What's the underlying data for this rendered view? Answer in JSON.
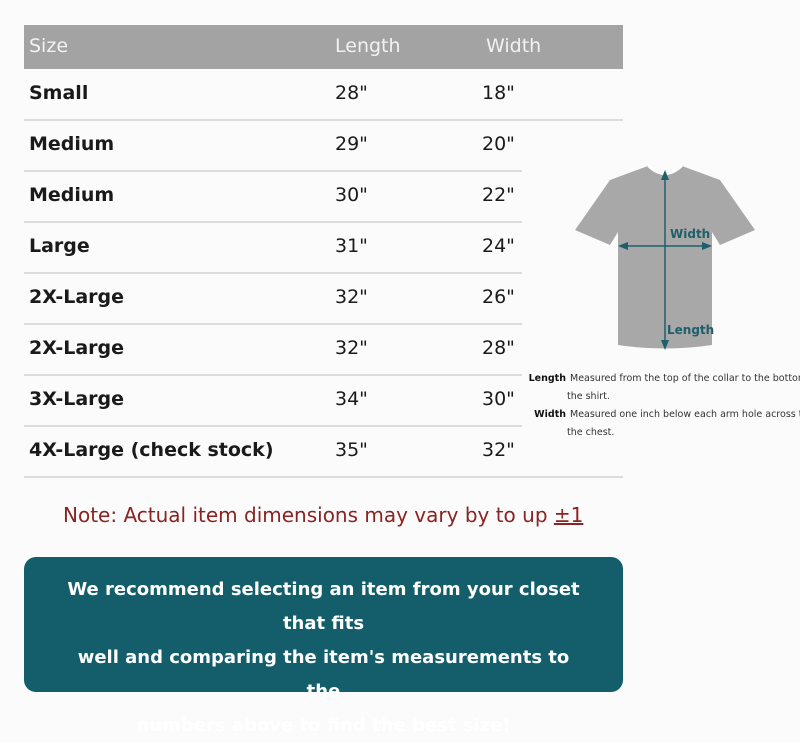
{
  "table": {
    "headers": [
      "Size",
      "Length",
      "Width"
    ],
    "rows": [
      {
        "size": "Small",
        "length": "28\"",
        "width": "18\""
      },
      {
        "size": "Medium",
        "length": "29\"",
        "width": "20\""
      },
      {
        "size": "Medium",
        "length": "30\"",
        "width": "22\""
      },
      {
        "size": "Large",
        "length": "31\"",
        "width": "24\""
      },
      {
        "size": "2X-Large",
        "length": "32\"",
        "width": "26\""
      },
      {
        "size": "2X-Large",
        "length": "32\"",
        "width": "28\""
      },
      {
        "size": "3X-Large",
        "length": "34\"",
        "width": "30\""
      },
      {
        "size": "4X-Large (check stock)",
        "length": "35\"",
        "width": "32\""
      }
    ]
  },
  "diagram": {
    "width_label": "Width",
    "length_label": "Length",
    "shirt_color": "#a8a8a8",
    "arrow_color": "#1f5f6b"
  },
  "legend": {
    "length_term": "Length",
    "length_def_1": "Measured from the top of the collar to the bottom of",
    "length_def_2": "the shirt.",
    "width_term": "Width",
    "width_def_1": "Measured one inch below each arm hole across the",
    "width_def_2": "the chest."
  },
  "note": {
    "text": "Note: Actual item dimensions may vary by to up ",
    "value": "±1"
  },
  "recommendation": {
    "lines": [
      "We recommend selecting an item from your closet that fits",
      "well and comparing the item's measurements to the",
      "numbers above to find the best size!"
    ]
  }
}
